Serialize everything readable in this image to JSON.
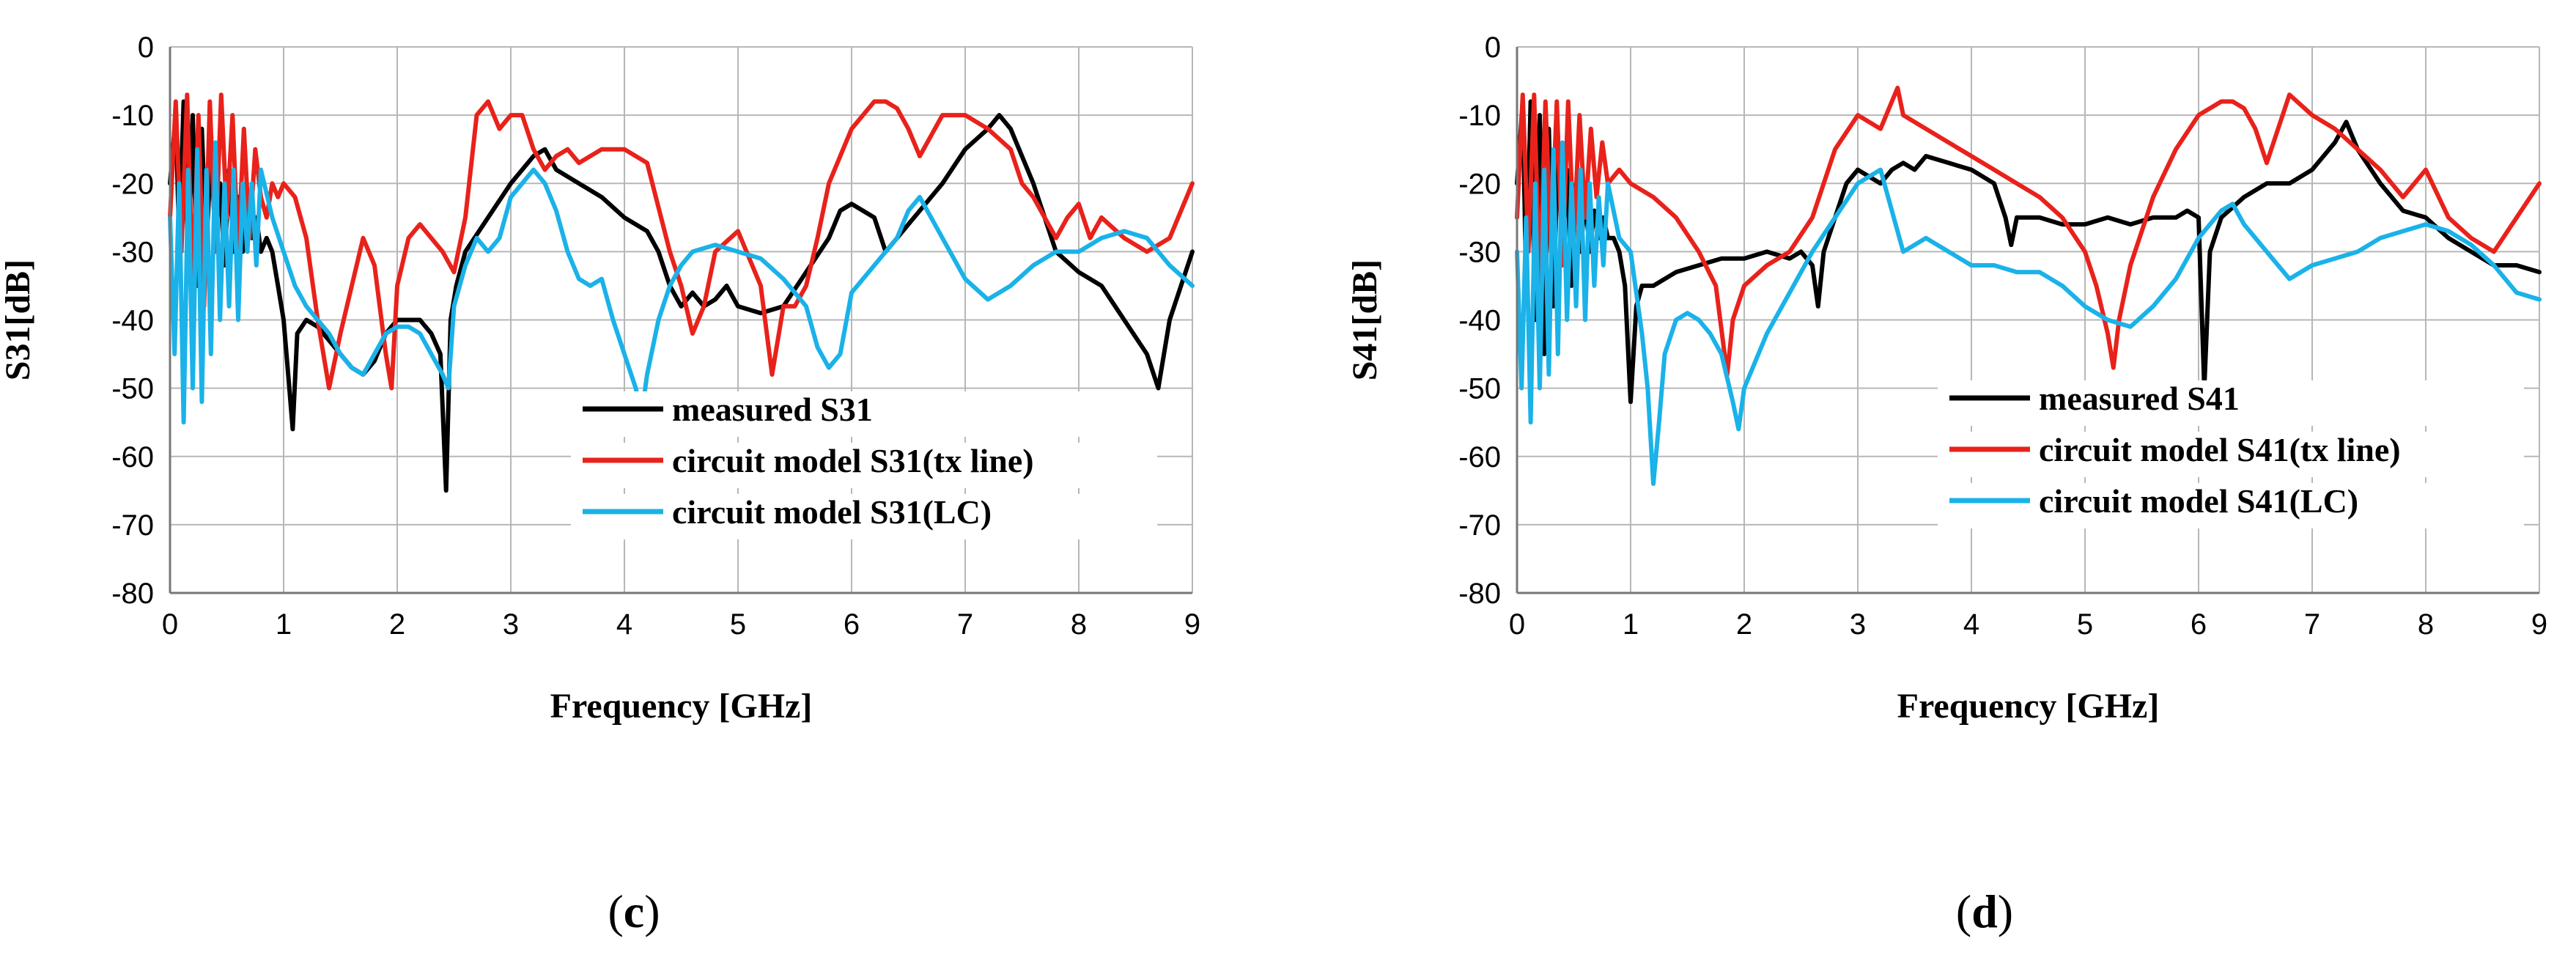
{
  "chart_data": [
    {
      "type": "line",
      "panel_label": "c",
      "xlabel": "Frequency  [GHz]",
      "ylabel": "S31[dB]",
      "xlim": [
        0,
        9
      ],
      "ylim": [
        -80,
        0
      ],
      "xticks": [
        0,
        1,
        2,
        3,
        4,
        5,
        6,
        7,
        8,
        9
      ],
      "yticks": [
        0,
        -10,
        -20,
        -30,
        -40,
        -50,
        -60,
        -70,
        -80
      ],
      "grid": true,
      "legend_position": "bottom-right",
      "series": [
        {
          "name": "measured S31",
          "color": "#000000",
          "x": [
            0,
            0.05,
            0.08,
            0.12,
            0.16,
            0.2,
            0.24,
            0.28,
            0.32,
            0.36,
            0.4,
            0.44,
            0.48,
            0.52,
            0.56,
            0.6,
            0.64,
            0.68,
            0.72,
            0.76,
            0.8,
            0.85,
            0.9,
            0.95,
            1.0,
            1.05,
            1.08,
            1.12,
            1.2,
            1.3,
            1.4,
            1.5,
            1.6,
            1.7,
            1.8,
            1.9,
            2.0,
            2.1,
            2.2,
            2.3,
            2.38,
            2.43,
            2.47,
            2.52,
            2.6,
            2.8,
            3.0,
            3.2,
            3.3,
            3.4,
            3.6,
            3.8,
            4.0,
            4.2,
            4.3,
            4.4,
            4.5,
            4.6,
            4.7,
            4.8,
            4.9,
            5.0,
            5.2,
            5.4,
            5.6,
            5.8,
            5.9,
            6.0,
            6.1,
            6.2,
            6.3,
            6.4,
            6.5,
            6.6,
            6.8,
            7.0,
            7.2,
            7.3,
            7.4,
            7.6,
            7.8,
            8.0,
            8.2,
            8.4,
            8.6,
            8.7,
            8.8,
            9.0
          ],
          "y": [
            -20,
            -10,
            -28,
            -8,
            -32,
            -10,
            -35,
            -12,
            -30,
            -15,
            -28,
            -20,
            -32,
            -18,
            -30,
            -22,
            -30,
            -24,
            -28,
            -25,
            -30,
            -28,
            -30,
            -35,
            -40,
            -50,
            -56,
            -42,
            -40,
            -41,
            -43,
            -45,
            -47,
            -48,
            -46,
            -42,
            -40,
            -40,
            -40,
            -42,
            -45,
            -65,
            -40,
            -35,
            -30,
            -25,
            -20,
            -16,
            -15,
            -18,
            -20,
            -22,
            -25,
            -27,
            -30,
            -35,
            -38,
            -36,
            -38,
            -37,
            -35,
            -38,
            -39,
            -38,
            -33,
            -28,
            -24,
            -23,
            -24,
            -25,
            -30,
            -28,
            -26,
            -24,
            -20,
            -15,
            -12,
            -10,
            -12,
            -20,
            -30,
            -33,
            -35,
            -40,
            -45,
            -50,
            -40,
            -30
          ]
        },
        {
          "name": "circuit model S31(tx line)",
          "color": "#e8221b",
          "x": [
            0,
            0.05,
            0.1,
            0.15,
            0.2,
            0.25,
            0.3,
            0.35,
            0.4,
            0.45,
            0.5,
            0.55,
            0.6,
            0.65,
            0.7,
            0.75,
            0.8,
            0.85,
            0.9,
            0.95,
            1.0,
            1.1,
            1.2,
            1.3,
            1.35,
            1.4,
            1.5,
            1.6,
            1.7,
            1.8,
            1.9,
            1.95,
            2.0,
            2.1,
            2.2,
            2.3,
            2.4,
            2.5,
            2.6,
            2.7,
            2.8,
            2.9,
            3.0,
            3.1,
            3.2,
            3.3,
            3.4,
            3.5,
            3.6,
            3.8,
            4.0,
            4.2,
            4.4,
            4.5,
            4.6,
            4.7,
            4.8,
            5.0,
            5.2,
            5.3,
            5.4,
            5.5,
            5.6,
            5.7,
            5.8,
            6.0,
            6.2,
            6.3,
            6.4,
            6.5,
            6.6,
            6.8,
            7.0,
            7.2,
            7.4,
            7.5,
            7.6,
            7.8,
            7.9,
            8.0,
            8.1,
            8.2,
            8.4,
            8.6,
            8.8,
            9.0
          ],
          "y": [
            -25,
            -8,
            -30,
            -7,
            -35,
            -10,
            -38,
            -8,
            -30,
            -7,
            -25,
            -10,
            -30,
            -12,
            -28,
            -15,
            -22,
            -25,
            -20,
            -22,
            -20,
            -22,
            -28,
            -40,
            -45,
            -50,
            -42,
            -35,
            -28,
            -32,
            -45,
            -50,
            -35,
            -28,
            -26,
            -28,
            -30,
            -33,
            -25,
            -10,
            -8,
            -12,
            -10,
            -10,
            -15,
            -18,
            -16,
            -15,
            -17,
            -15,
            -15,
            -17,
            -30,
            -35,
            -42,
            -38,
            -30,
            -27,
            -35,
            -48,
            -38,
            -38,
            -35,
            -28,
            -20,
            -12,
            -8,
            -8,
            -9,
            -12,
            -16,
            -10,
            -10,
            -12,
            -15,
            -20,
            -22,
            -28,
            -25,
            -23,
            -28,
            -25,
            -28,
            -30,
            -28,
            -20
          ]
        },
        {
          "name": "circuit model S31(LC)",
          "color": "#1ab2e8",
          "x": [
            0,
            0.04,
            0.08,
            0.12,
            0.16,
            0.2,
            0.24,
            0.28,
            0.32,
            0.36,
            0.4,
            0.44,
            0.48,
            0.52,
            0.56,
            0.6,
            0.64,
            0.68,
            0.72,
            0.76,
            0.8,
            0.9,
            1.0,
            1.1,
            1.2,
            1.3,
            1.4,
            1.5,
            1.6,
            1.7,
            1.8,
            1.9,
            2.0,
            2.1,
            2.2,
            2.3,
            2.4,
            2.45,
            2.5,
            2.6,
            2.7,
            2.8,
            2.9,
            3.0,
            3.1,
            3.2,
            3.3,
            3.4,
            3.5,
            3.6,
            3.7,
            3.8,
            3.9,
            4.0,
            4.1,
            4.15,
            4.2,
            4.3,
            4.4,
            4.5,
            4.6,
            4.8,
            5.0,
            5.2,
            5.4,
            5.6,
            5.7,
            5.8,
            5.9,
            6.0,
            6.2,
            6.4,
            6.5,
            6.6,
            6.8,
            7.0,
            7.2,
            7.4,
            7.6,
            7.8,
            8.0,
            8.2,
            8.4,
            8.6,
            8.8,
            9.0
          ],
          "y": [
            -25,
            -45,
            -20,
            -55,
            -18,
            -50,
            -15,
            -52,
            -18,
            -45,
            -14,
            -40,
            -20,
            -38,
            -18,
            -40,
            -20,
            -30,
            -20,
            -32,
            -18,
            -25,
            -30,
            -35,
            -38,
            -40,
            -42,
            -45,
            -47,
            -48,
            -45,
            -42,
            -41,
            -41,
            -42,
            -45,
            -48,
            -50,
            -38,
            -32,
            -28,
            -30,
            -28,
            -22,
            -20,
            -18,
            -20,
            -24,
            -30,
            -34,
            -35,
            -34,
            -40,
            -45,
            -50,
            -54,
            -48,
            -40,
            -35,
            -32,
            -30,
            -29,
            -30,
            -31,
            -34,
            -38,
            -44,
            -47,
            -45,
            -36,
            -32,
            -28,
            -24,
            -22,
            -28,
            -34,
            -37,
            -35,
            -32,
            -30,
            -30,
            -28,
            -27,
            -28,
            -32,
            -35
          ]
        }
      ]
    },
    {
      "type": "line",
      "panel_label": "d",
      "xlabel": "Frequency  [GHz]",
      "ylabel": "S41[dB]",
      "xlim": [
        0,
        9
      ],
      "ylim": [
        -80,
        0
      ],
      "xticks": [
        0,
        1,
        2,
        3,
        4,
        5,
        6,
        7,
        8,
        9
      ],
      "yticks": [
        0,
        -10,
        -20,
        -30,
        -40,
        -50,
        -60,
        -70,
        -80
      ],
      "grid": true,
      "legend_position": "bottom-right",
      "series": [
        {
          "name": "measured S41",
          "color": "#000000",
          "x": [
            0,
            0.05,
            0.08,
            0.12,
            0.16,
            0.2,
            0.24,
            0.28,
            0.32,
            0.36,
            0.4,
            0.44,
            0.48,
            0.52,
            0.56,
            0.6,
            0.64,
            0.68,
            0.72,
            0.76,
            0.8,
            0.85,
            0.9,
            0.95,
            1.0,
            1.05,
            1.1,
            1.2,
            1.4,
            1.6,
            1.8,
            2.0,
            2.2,
            2.4,
            2.5,
            2.6,
            2.65,
            2.7,
            2.8,
            2.9,
            3.0,
            3.1,
            3.2,
            3.3,
            3.4,
            3.5,
            3.6,
            3.8,
            4.0,
            4.2,
            4.3,
            4.35,
            4.4,
            4.6,
            4.8,
            5.0,
            5.2,
            5.4,
            5.6,
            5.8,
            5.9,
            6.0,
            6.05,
            6.1,
            6.2,
            6.4,
            6.6,
            6.8,
            7.0,
            7.1,
            7.2,
            7.3,
            7.4,
            7.6,
            7.8,
            8.0,
            8.2,
            8.4,
            8.6,
            8.8,
            9.0
          ],
          "y": [
            -20,
            -8,
            -35,
            -8,
            -40,
            -10,
            -45,
            -12,
            -38,
            -15,
            -30,
            -18,
            -35,
            -20,
            -30,
            -22,
            -30,
            -24,
            -28,
            -25,
            -28,
            -28,
            -30,
            -35,
            -52,
            -38,
            -35,
            -35,
            -33,
            -32,
            -31,
            -31,
            -30,
            -31,
            -30,
            -32,
            -38,
            -30,
            -25,
            -20,
            -18,
            -19,
            -20,
            -18,
            -17,
            -18,
            -16,
            -17,
            -18,
            -20,
            -25,
            -29,
            -25,
            -25,
            -26,
            -26,
            -25,
            -26,
            -25,
            -25,
            -24,
            -25,
            -50,
            -30,
            -25,
            -22,
            -20,
            -20,
            -18,
            -16,
            -14,
            -11,
            -15,
            -20,
            -24,
            -25,
            -28,
            -30,
            -32,
            -32,
            -33
          ]
        },
        {
          "name": "circuit model S41(tx line)",
          "color": "#e8221b",
          "x": [
            0,
            0.05,
            0.1,
            0.15,
            0.2,
            0.25,
            0.3,
            0.35,
            0.4,
            0.45,
            0.5,
            0.55,
            0.6,
            0.65,
            0.7,
            0.75,
            0.8,
            0.9,
            1.0,
            1.2,
            1.4,
            1.6,
            1.75,
            1.85,
            1.9,
            2.0,
            2.2,
            2.4,
            2.6,
            2.8,
            3.0,
            3.2,
            3.3,
            3.35,
            3.4,
            3.6,
            3.8,
            4.0,
            4.2,
            4.4,
            4.6,
            4.8,
            5.0,
            5.1,
            5.2,
            5.25,
            5.3,
            5.4,
            5.6,
            5.8,
            6.0,
            6.2,
            6.3,
            6.4,
            6.5,
            6.6,
            6.8,
            7.0,
            7.2,
            7.4,
            7.6,
            7.8,
            8.0,
            8.2,
            8.4,
            8.6,
            8.8,
            9.0
          ],
          "y": [
            -25,
            -7,
            -30,
            -7,
            -35,
            -8,
            -30,
            -8,
            -32,
            -8,
            -28,
            -10,
            -25,
            -12,
            -22,
            -14,
            -20,
            -18,
            -20,
            -22,
            -25,
            -30,
            -35,
            -48,
            -40,
            -35,
            -32,
            -30,
            -25,
            -15,
            -10,
            -12,
            -8,
            -6,
            -10,
            -12,
            -14,
            -16,
            -18,
            -20,
            -22,
            -25,
            -30,
            -35,
            -42,
            -47,
            -40,
            -32,
            -22,
            -15,
            -10,
            -8,
            -8,
            -9,
            -12,
            -17,
            -7,
            -10,
            -12,
            -15,
            -18,
            -22,
            -18,
            -25,
            -28,
            -30,
            -25,
            -20
          ]
        },
        {
          "name": "circuit model S41(LC)",
          "color": "#1ab2e8",
          "x": [
            0,
            0.04,
            0.08,
            0.12,
            0.16,
            0.2,
            0.24,
            0.28,
            0.32,
            0.36,
            0.4,
            0.44,
            0.48,
            0.52,
            0.56,
            0.6,
            0.64,
            0.68,
            0.72,
            0.76,
            0.8,
            0.9,
            1.0,
            1.1,
            1.15,
            1.2,
            1.25,
            1.3,
            1.4,
            1.5,
            1.6,
            1.7,
            1.8,
            1.9,
            1.95,
            2.0,
            2.2,
            2.4,
            2.6,
            2.8,
            3.0,
            3.2,
            3.4,
            3.6,
            3.8,
            4.0,
            4.2,
            4.4,
            4.6,
            4.8,
            5.0,
            5.2,
            5.4,
            5.6,
            5.8,
            6.0,
            6.2,
            6.3,
            6.4,
            6.6,
            6.8,
            7.0,
            7.2,
            7.4,
            7.6,
            7.8,
            8.0,
            8.2,
            8.4,
            8.6,
            8.8,
            9.0
          ],
          "y": [
            -30,
            -50,
            -25,
            -55,
            -20,
            -50,
            -18,
            -48,
            -15,
            -45,
            -14,
            -40,
            -20,
            -38,
            -18,
            -40,
            -20,
            -35,
            -22,
            -32,
            -20,
            -28,
            -30,
            -42,
            -50,
            -64,
            -55,
            -45,
            -40,
            -39,
            -40,
            -42,
            -45,
            -52,
            -56,
            -50,
            -42,
            -36,
            -30,
            -25,
            -20,
            -18,
            -30,
            -28,
            -30,
            -32,
            -32,
            -33,
            -33,
            -35,
            -38,
            -40,
            -41,
            -38,
            -34,
            -28,
            -24,
            -23,
            -26,
            -30,
            -34,
            -32,
            -31,
            -30,
            -28,
            -27,
            -26,
            -27,
            -29,
            -32,
            -36,
            -37
          ]
        }
      ]
    }
  ]
}
